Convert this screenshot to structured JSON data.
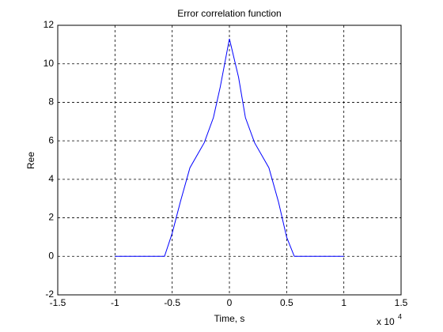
{
  "chart_data": {
    "type": "line",
    "title": "Error correlation function",
    "x_label": "Time, s",
    "y_label": "Ree",
    "x_exponent": {
      "base": "x 10",
      "power": "4"
    },
    "x": [
      -1,
      -0.567,
      -0.5,
      -0.43,
      -0.345,
      -0.22,
      -0.14,
      -0.08,
      0,
      0.08,
      0.14,
      0.22,
      0.345,
      0.43,
      0.5,
      0.567,
      1
    ],
    "series": [
      {
        "color": "#0000ff",
        "values": [
          0,
          0,
          1.2,
          2.8,
          4.6,
          5.9,
          7.2,
          8.8,
          11.3,
          9.3,
          7.2,
          5.9,
          4.6,
          2.8,
          1.0,
          0,
          0
        ]
      }
    ],
    "xlim": [
      -1.5,
      1.5
    ],
    "xticks": [
      -1.5,
      -1,
      -0.5,
      0,
      0.5,
      1,
      1.5
    ],
    "ylim": [
      -2,
      12
    ],
    "yticks": [
      -2,
      0,
      2,
      4,
      6,
      8,
      10,
      12
    ],
    "grid": true
  }
}
